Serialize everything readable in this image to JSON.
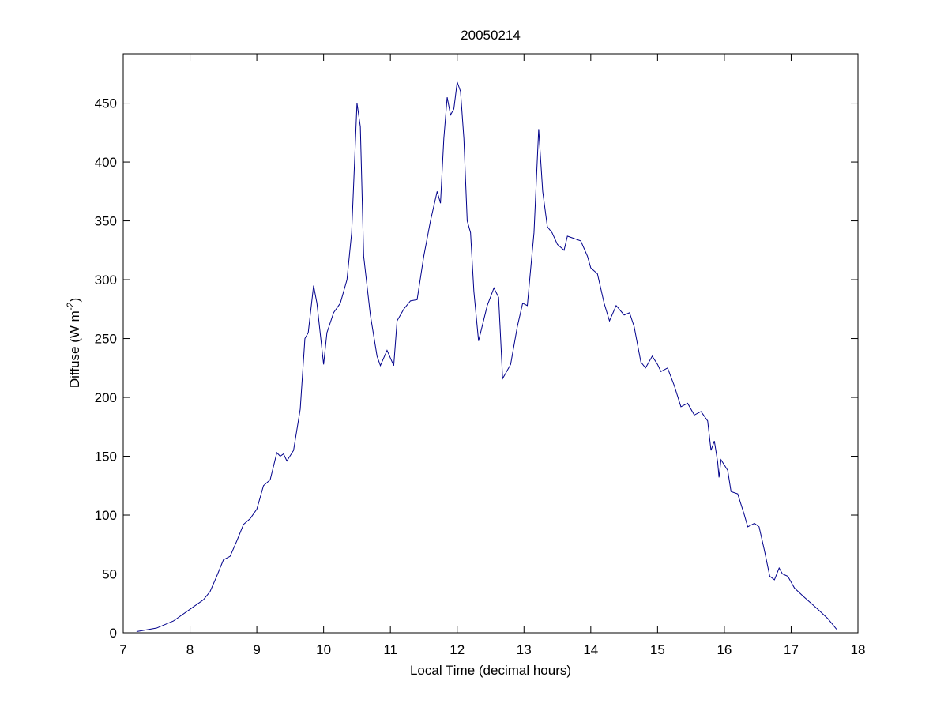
{
  "chart_data": {
    "type": "line",
    "title": "20050214",
    "xlabel": "Local Time (decimal hours)",
    "ylabel": {
      "text": "Diffuse (W m",
      "superscript": "-2",
      "suffix": ")"
    },
    "xlim": [
      7,
      18
    ],
    "xticks": [
      7,
      8,
      9,
      10,
      11,
      12,
      13,
      14,
      15,
      16,
      17,
      18
    ],
    "ylim": [
      0,
      492
    ],
    "yticks": [
      0,
      50,
      100,
      150,
      200,
      250,
      300,
      350,
      400,
      450
    ],
    "series": [
      {
        "color": "#00008b",
        "x": [
          7.2,
          7.5,
          7.75,
          8.0,
          8.2,
          8.3,
          8.4,
          8.5,
          8.6,
          8.7,
          8.8,
          8.9,
          9.0,
          9.1,
          9.2,
          9.3,
          9.35,
          9.4,
          9.45,
          9.55,
          9.65,
          9.72,
          9.77,
          9.85,
          9.9,
          10.0,
          10.05,
          10.15,
          10.25,
          10.35,
          10.42,
          10.5,
          10.55,
          10.6,
          10.7,
          10.8,
          10.85,
          10.95,
          11.05,
          11.1,
          11.2,
          11.3,
          11.4,
          11.5,
          11.6,
          11.7,
          11.75,
          11.8,
          11.85,
          11.9,
          11.95,
          12.0,
          12.05,
          12.1,
          12.15,
          12.2,
          12.25,
          12.32,
          12.45,
          12.55,
          12.62,
          12.68,
          12.8,
          12.9,
          12.98,
          13.05,
          13.15,
          13.22,
          13.28,
          13.35,
          13.42,
          13.5,
          13.6,
          13.65,
          13.75,
          13.85,
          13.95,
          14.0,
          14.1,
          14.2,
          14.28,
          14.38,
          14.5,
          14.58,
          14.65,
          14.75,
          14.82,
          14.92,
          15.0,
          15.05,
          15.15,
          15.25,
          15.35,
          15.45,
          15.55,
          15.65,
          15.75,
          15.8,
          15.85,
          15.9,
          15.92,
          15.95,
          16.05,
          16.1,
          16.2,
          16.3,
          16.35,
          16.45,
          16.52,
          16.6,
          16.68,
          16.75,
          16.82,
          16.87,
          16.95,
          17.05,
          17.2,
          17.4,
          17.55,
          17.68
        ],
        "values": [
          1,
          4,
          10,
          20,
          28,
          35,
          48,
          62,
          65,
          78,
          92,
          97,
          105,
          125,
          130,
          153,
          150,
          152,
          146,
          155,
          190,
          250,
          255,
          295,
          280,
          228,
          255,
          272,
          280,
          300,
          340,
          450,
          430,
          320,
          270,
          235,
          227,
          240,
          227,
          265,
          275,
          282,
          283,
          320,
          350,
          375,
          365,
          420,
          455,
          440,
          445,
          468,
          460,
          420,
          350,
          340,
          290,
          248,
          278,
          293,
          285,
          216,
          228,
          260,
          280,
          278,
          340,
          428,
          375,
          345,
          340,
          330,
          325,
          337,
          335,
          333,
          320,
          310,
          305,
          280,
          265,
          278,
          270,
          272,
          260,
          230,
          225,
          235,
          228,
          222,
          225,
          210,
          192,
          195,
          185,
          188,
          180,
          155,
          163,
          145,
          132,
          147,
          138,
          120,
          118,
          100,
          90,
          93,
          90,
          70,
          48,
          45,
          55,
          50,
          48,
          38,
          30,
          20,
          12,
          3
        ]
      }
    ]
  }
}
